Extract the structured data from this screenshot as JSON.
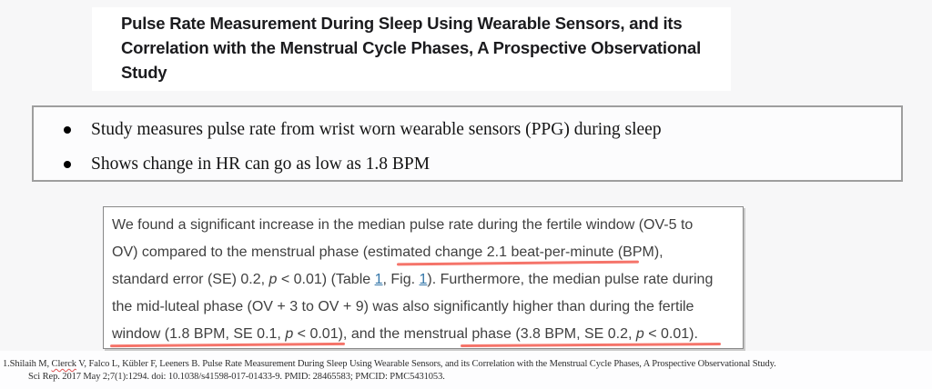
{
  "title": {
    "lines": [
      "Pulse Rate Measurement During Sleep Using Wearable Sensors, and its",
      "Correlation with the Menstrual Cycle Phases, A Prospective Observational",
      "Study"
    ]
  },
  "bullets": [
    "Study measures pulse rate from wrist worn wearable sensors (PPG) during sleep",
    "Shows change in HR can go as low as 1.8 BPM"
  ],
  "quote": {
    "line1": "We found a significant increase in the median pulse rate during the fertile window (OV-5 to",
    "line2": "OV) compared to the menstrual phase (estimated change 2.1 beat-per-minute (BPM),",
    "line3": {
      "a": "standard error (SE) 0.2, ",
      "p1": "p",
      "b": " < 0.01) (Table ",
      "link1": "1",
      "c": ", Fig. ",
      "link2": "1",
      "d": "). Furthermore, the median pulse rate during"
    },
    "line4": "the mid-luteal phase (OV + 3 to OV + 9) was also significantly higher than during the fertile",
    "line5": {
      "a": "window (1.8 BPM, SE 0.1, ",
      "p1": "p",
      "b": " < 0.01), and the menstrual phase (3.8 BPM, SE 0.2, ",
      "p2": "p",
      "c": " < 0.01)."
    }
  },
  "citation": {
    "l1a": "1.Shilaih M, ",
    "l1_misspelled": "Clerck",
    "l1b": " V, Falco L, Kübler F, Leeners B. Pulse Rate Measurement During Sleep Using Wearable Sensors, and its Correlation with the Menstrual Cycle Phases, A Prospective Observational Study.",
    "l2": "Sci Rep. 2017 May 2;7(1):1294. doi: 10.1038/s41598-017-01433-9. PMID: 28465583; PMCID: PMC5431053."
  },
  "colors": {
    "annotation_red": "#f4655a",
    "link_blue": "#3577a9",
    "page_bg": "#f7f7f8"
  }
}
